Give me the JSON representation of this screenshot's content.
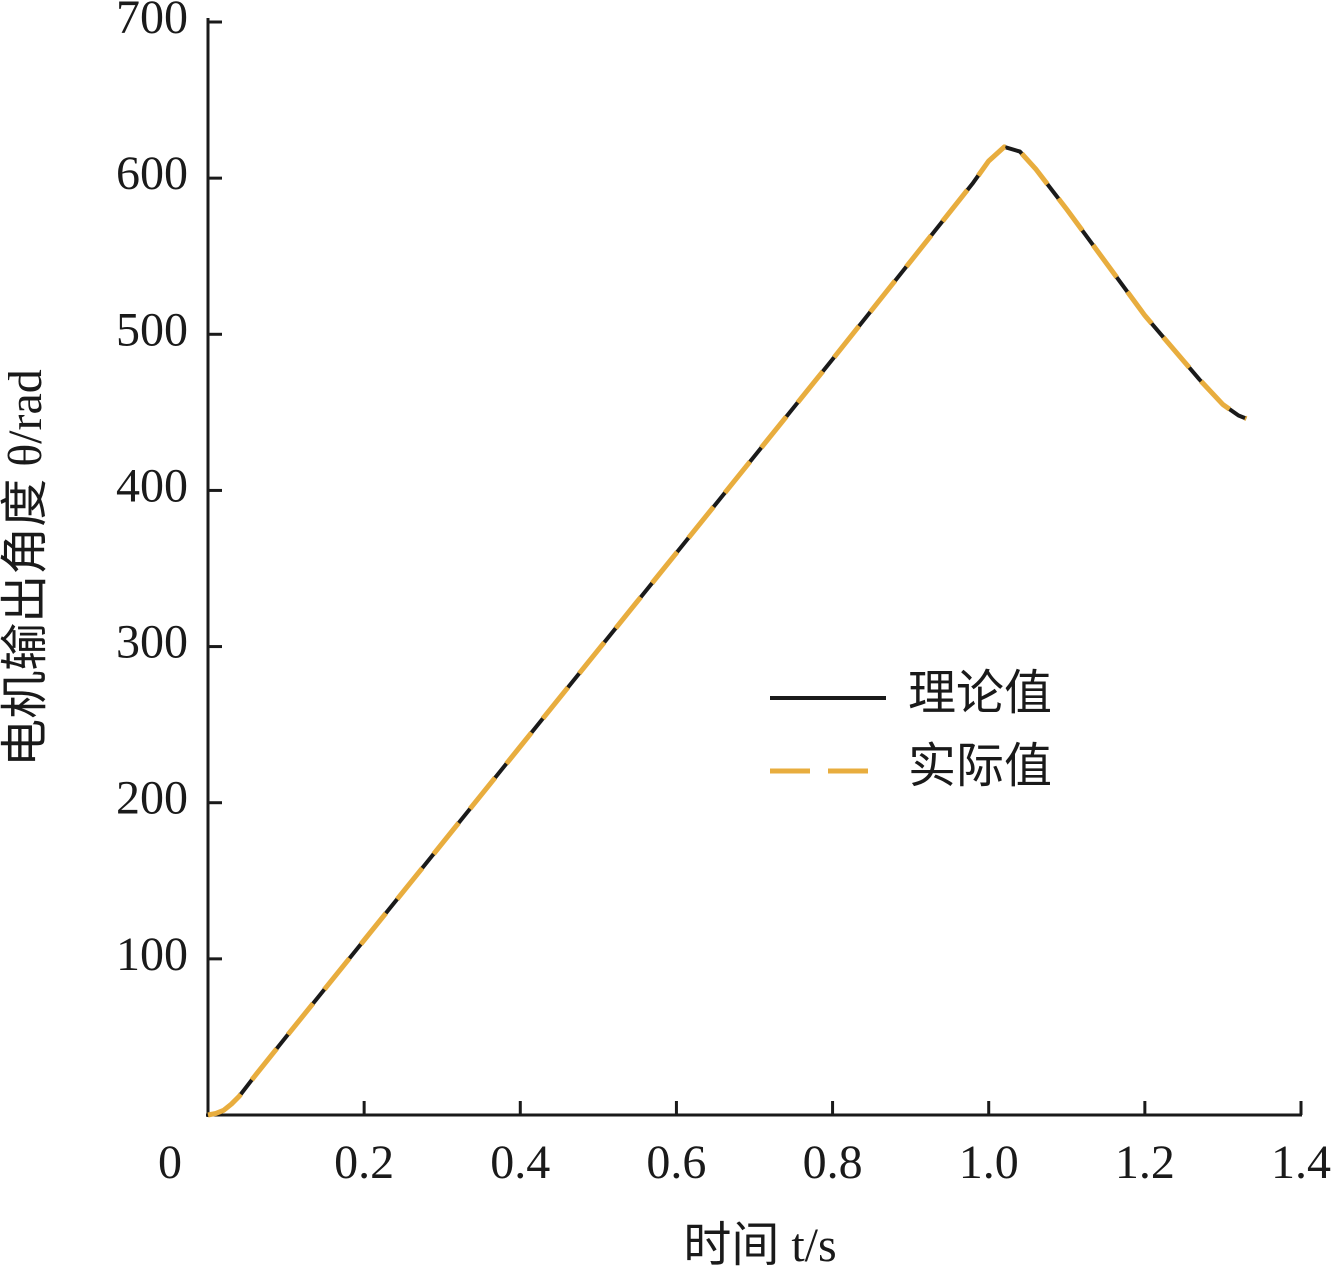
{
  "chart_data": {
    "type": "line",
    "xlabel": "时间 t/s",
    "ylabel": "电机输出角度 θ/rad",
    "x": [
      0,
      0.01,
      0.02,
      0.03,
      0.04,
      0.06,
      0.1,
      0.2,
      0.4,
      0.6,
      0.8,
      0.98,
      1.0,
      1.02,
      1.04,
      1.06,
      1.1,
      1.2,
      1.27,
      1.3,
      1.32,
      1.33
    ],
    "series": [
      {
        "name": "理论值",
        "color": "#1a1a1a",
        "dash": false,
        "values": [
          0,
          1,
          3,
          7,
          12,
          25,
          50,
          112,
          236,
          360,
          484,
          597,
          611,
          620,
          617,
          606,
          580,
          512,
          471,
          455,
          448,
          446
        ]
      },
      {
        "name": "实际值",
        "color": "#e8ad3e",
        "dash": true,
        "values": [
          0,
          1,
          3,
          7,
          12,
          25,
          50,
          112,
          236,
          360,
          484,
          597,
          611,
          620,
          617,
          606,
          580,
          512,
          471,
          455,
          448,
          446
        ]
      }
    ],
    "xlim": [
      0,
      1.4
    ],
    "ylim": [
      0,
      700
    ],
    "xticks": [
      0,
      0.2,
      0.4,
      0.6,
      0.8,
      {
        "value": 1,
        "label": "1.0"
      },
      1.2,
      1.4
    ],
    "yticks": [
      100,
      200,
      300,
      400,
      500,
      600,
      700
    ],
    "grid": false
  }
}
